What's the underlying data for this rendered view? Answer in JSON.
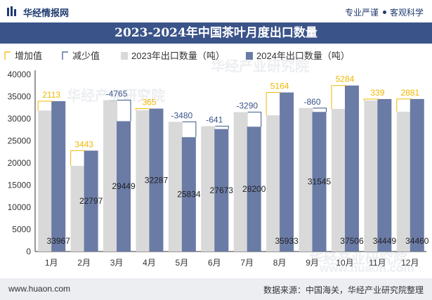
{
  "header": {
    "brand": "华经情报网",
    "tag1": "专业严谨",
    "tag2": "客观科学"
  },
  "title": "2023-2024年中国茶叶月度出口数量",
  "legend": {
    "increase": "增加值",
    "decrease": "减少值",
    "series2023": "2023年出口数量（吨）",
    "series2024": "2024年出口数量（吨）"
  },
  "watermarks": [
    "华经产业研究院",
    "华经产业研究院",
    "华经产业研究院",
    "www.huaon.com"
  ],
  "footer": {
    "url": "www.huaon.com",
    "source": "数据来源：中国海关，华经产业研究院整理"
  },
  "colors": {
    "series2023": "#d9d9d9",
    "series2024": "#6a7ba6",
    "increase": "#f0b800",
    "decrease": "#3a5389",
    "title_bg": "#3a5389",
    "footer_bg": "#eceef2"
  },
  "chart_data": {
    "type": "bar",
    "categories": [
      "1月",
      "2月",
      "3月",
      "4月",
      "5月",
      "6月",
      "7月",
      "8月",
      "9月",
      "10月",
      "11月",
      "12月"
    ],
    "series": [
      {
        "name": "2023年出口数量（吨）",
        "values": [
          31854,
          19354,
          34214,
          31922,
          29314,
          28314,
          31490,
          30769,
          32405,
          32222,
          34110,
          31579
        ]
      },
      {
        "name": "2024年出口数量（吨）",
        "values": [
          33967,
          22797,
          29449,
          32287,
          25834,
          27673,
          28200,
          35933,
          31545,
          37506,
          34449,
          34460
        ]
      }
    ],
    "bar_labels_2024": [
      "33967",
      "22797",
      "29449",
      "32287",
      "25834",
      "27673",
      "28200",
      "35933",
      "31545",
      "37506",
      "34449",
      "34460"
    ],
    "change_values": [
      2113,
      3443,
      -4765,
      365,
      -3480,
      -641,
      -3290,
      5164,
      -860,
      5284,
      339,
      2881
    ],
    "ylim": [
      0,
      40000
    ],
    "yticks": [
      "0",
      "5000",
      "10000",
      "15000",
      "20000",
      "25000",
      "30000",
      "35000",
      "40000"
    ],
    "legend_position": "top-left",
    "grid": false
  }
}
